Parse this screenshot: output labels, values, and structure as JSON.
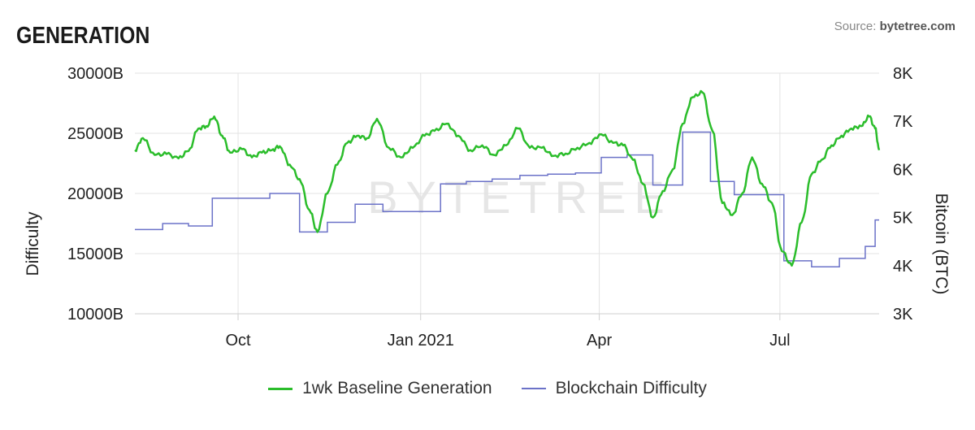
{
  "header": {
    "title": "GENERATION",
    "source_label": "Source:",
    "source_name": "bytetree.com"
  },
  "watermark": "BYTETREE",
  "chart_data": {
    "type": "line",
    "y_left": {
      "label": "Difficulty",
      "ticks": [
        10000,
        15000,
        20000,
        25000,
        30000
      ],
      "tick_labels": [
        "10000B",
        "15000B",
        "20000B",
        "25000B",
        "30000B"
      ],
      "range": [
        10000,
        30000
      ]
    },
    "y_right": {
      "label": "Bitcoin (BTC)",
      "ticks": [
        3000,
        4000,
        5000,
        6000,
        7000,
        8000
      ],
      "tick_labels": [
        "3K",
        "4K",
        "5K",
        "6K",
        "7K",
        "8K"
      ],
      "range": [
        3000,
        8000
      ]
    },
    "x_axis": {
      "type": "date",
      "range": [
        "2020-08-10",
        "2021-08-20"
      ],
      "ticks": [
        {
          "date": "2020-10-01",
          "label": "Oct"
        },
        {
          "date": "2021-01-01",
          "label": "Jan 2021"
        },
        {
          "date": "2021-04-01",
          "label": "Apr"
        },
        {
          "date": "2021-07-01",
          "label": "Jul"
        }
      ]
    },
    "grid": true,
    "legend_position": "bottom-center",
    "series": [
      {
        "name": "1wk Baseline Generation",
        "axis": "right",
        "color": "#2bbd2b",
        "points": [
          [
            "2020-08-10",
            6400
          ],
          [
            "2020-08-14",
            6650
          ],
          [
            "2020-08-20",
            6300
          ],
          [
            "2020-08-26",
            6320
          ],
          [
            "2020-09-01",
            6230
          ],
          [
            "2020-09-06",
            6380
          ],
          [
            "2020-09-11",
            6850
          ],
          [
            "2020-09-15",
            6900
          ],
          [
            "2020-09-19",
            7100
          ],
          [
            "2020-09-23",
            6700
          ],
          [
            "2020-09-27",
            6350
          ],
          [
            "2020-10-03",
            6420
          ],
          [
            "2020-10-08",
            6250
          ],
          [
            "2020-10-13",
            6350
          ],
          [
            "2020-10-18",
            6400
          ],
          [
            "2020-10-22",
            6480
          ],
          [
            "2020-10-27",
            6100
          ],
          [
            "2020-11-01",
            5800
          ],
          [
            "2020-11-06",
            5150
          ],
          [
            "2020-11-10",
            4700
          ],
          [
            "2020-11-15",
            5500
          ],
          [
            "2020-11-20",
            6100
          ],
          [
            "2020-11-25",
            6550
          ],
          [
            "2020-11-30",
            6700
          ],
          [
            "2020-12-05",
            6650
          ],
          [
            "2020-12-10",
            7050
          ],
          [
            "2020-12-16",
            6450
          ],
          [
            "2020-12-22",
            6250
          ],
          [
            "2020-12-28",
            6450
          ],
          [
            "2021-01-03",
            6700
          ],
          [
            "2021-01-08",
            6800
          ],
          [
            "2021-01-14",
            6950
          ],
          [
            "2021-01-20",
            6700
          ],
          [
            "2021-01-26",
            6400
          ],
          [
            "2021-02-01",
            6500
          ],
          [
            "2021-02-07",
            6300
          ],
          [
            "2021-02-13",
            6500
          ],
          [
            "2021-02-19",
            6850
          ],
          [
            "2021-02-25",
            6450
          ],
          [
            "2021-03-03",
            6450
          ],
          [
            "2021-03-09",
            6280
          ],
          [
            "2021-03-15",
            6330
          ],
          [
            "2021-03-21",
            6450
          ],
          [
            "2021-03-27",
            6550
          ],
          [
            "2021-04-02",
            6730
          ],
          [
            "2021-04-08",
            6550
          ],
          [
            "2021-04-13",
            6500
          ],
          [
            "2021-04-18",
            6200
          ],
          [
            "2021-04-23",
            5700
          ],
          [
            "2021-04-28",
            5000
          ],
          [
            "2021-05-03",
            5550
          ],
          [
            "2021-05-08",
            6000
          ],
          [
            "2021-05-13",
            6950
          ],
          [
            "2021-05-18",
            7500
          ],
          [
            "2021-05-23",
            7600
          ],
          [
            "2021-05-28",
            6800
          ],
          [
            "2021-06-02",
            5300
          ],
          [
            "2021-06-07",
            5050
          ],
          [
            "2021-06-12",
            5500
          ],
          [
            "2021-06-17",
            6250
          ],
          [
            "2021-06-22",
            5700
          ],
          [
            "2021-06-27",
            5300
          ],
          [
            "2021-07-02",
            4300
          ],
          [
            "2021-07-07",
            4000
          ],
          [
            "2021-07-12",
            4900
          ],
          [
            "2021-07-17",
            5900
          ],
          [
            "2021-07-22",
            6200
          ],
          [
            "2021-07-27",
            6500
          ],
          [
            "2021-08-01",
            6700
          ],
          [
            "2021-08-06",
            6850
          ],
          [
            "2021-08-11",
            6900
          ],
          [
            "2021-08-15",
            7100
          ],
          [
            "2021-08-18",
            6850
          ],
          [
            "2021-08-20",
            6400
          ]
        ]
      },
      {
        "name": "Blockchain Difficulty",
        "axis": "left",
        "color": "#6b72c8",
        "steps": [
          [
            "2020-08-10",
            17000
          ],
          [
            "2020-08-24",
            17500
          ],
          [
            "2020-09-06",
            17300
          ],
          [
            "2020-09-18",
            19600
          ],
          [
            "2020-10-03",
            19600
          ],
          [
            "2020-10-17",
            20000
          ],
          [
            "2020-11-01",
            16800
          ],
          [
            "2020-11-15",
            17600
          ],
          [
            "2020-11-29",
            19100
          ],
          [
            "2020-12-13",
            18500
          ],
          [
            "2020-12-29",
            18500
          ],
          [
            "2021-01-11",
            20800
          ],
          [
            "2021-01-24",
            21000
          ],
          [
            "2021-02-06",
            21200
          ],
          [
            "2021-02-20",
            21500
          ],
          [
            "2021-03-06",
            21600
          ],
          [
            "2021-03-20",
            21700
          ],
          [
            "2021-04-02",
            23000
          ],
          [
            "2021-04-15",
            23200
          ],
          [
            "2021-04-28",
            20700
          ],
          [
            "2021-05-13",
            25100
          ],
          [
            "2021-05-27",
            21000
          ],
          [
            "2021-06-08",
            19900
          ],
          [
            "2021-07-03",
            14400
          ],
          [
            "2021-07-17",
            13900
          ],
          [
            "2021-07-31",
            14600
          ],
          [
            "2021-08-13",
            15600
          ],
          [
            "2021-08-18",
            17800
          ]
        ]
      }
    ]
  }
}
